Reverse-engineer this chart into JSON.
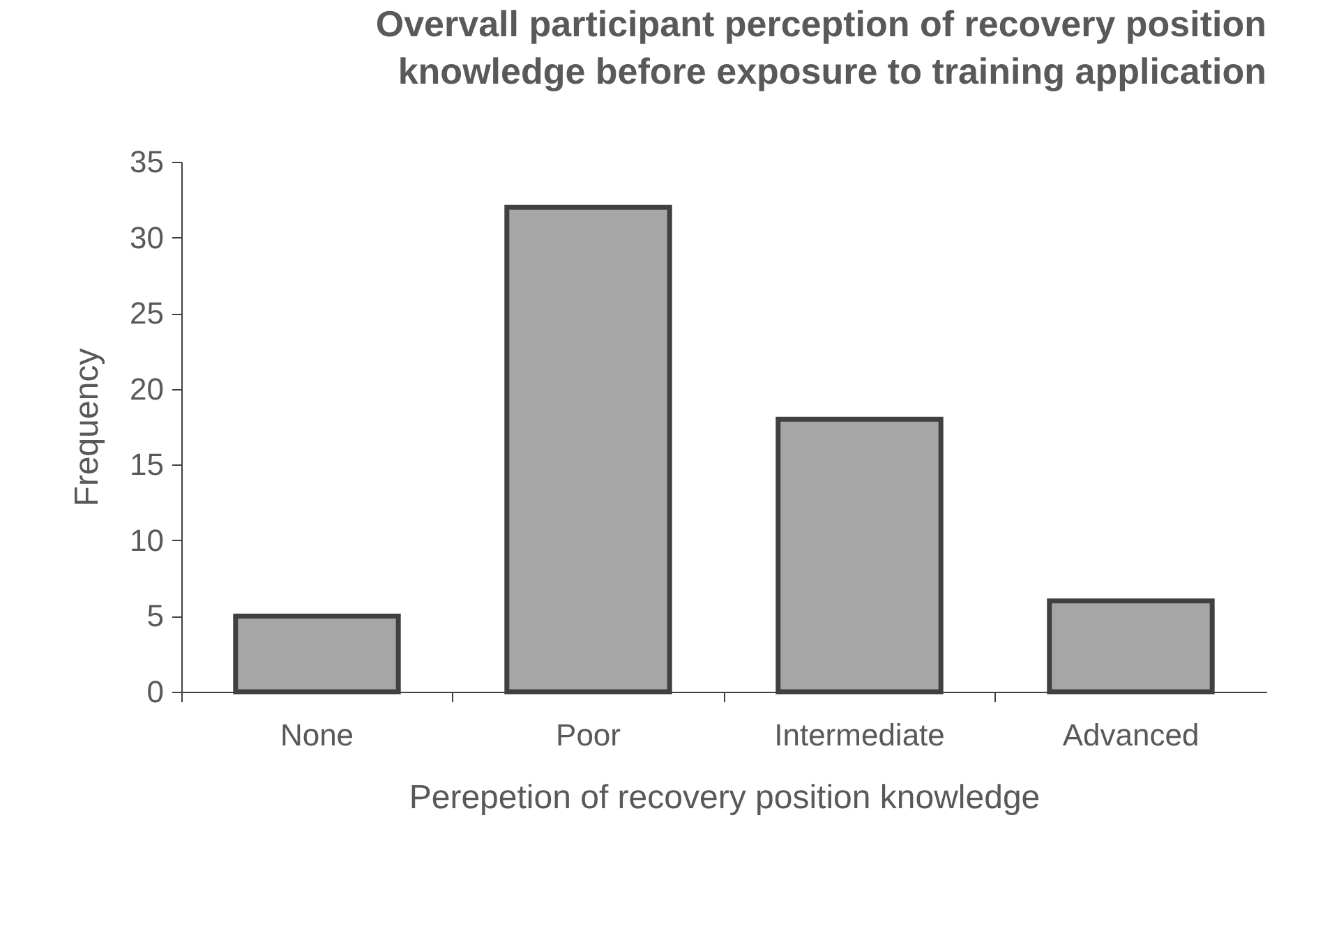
{
  "chart_data": {
    "type": "bar",
    "title": "Overvall participant perception of recovery position\nknowledge before exposure to training application",
    "xlabel": "Perepetion of recovery position knowledge",
    "ylabel": "Frequency",
    "categories": [
      "None",
      "Poor",
      "Intermediate",
      "Advanced"
    ],
    "values": [
      5,
      32,
      18,
      6
    ],
    "color": "#a6a6a6",
    "ylim": [
      0,
      35
    ],
    "yticks": [
      0,
      5,
      10,
      15,
      20,
      25,
      30,
      35
    ],
    "grid": false
  }
}
